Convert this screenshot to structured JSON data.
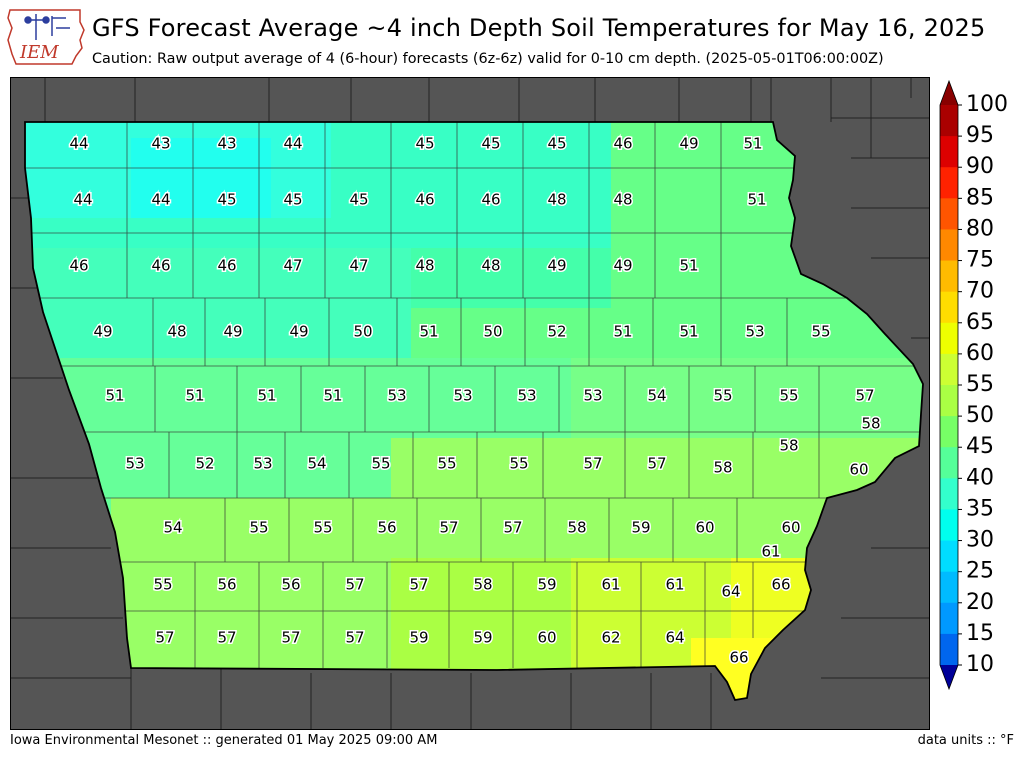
{
  "header": {
    "logo_text": "IEM",
    "title": "GFS Forecast Average ~4 inch Depth Soil Temperatures for May 16, 2025",
    "subtitle": "Caution: Raw output average of 4 (6-hour) forecasts (6z-6z) valid for 0-10 cm depth. (2025-05-01T06:00:00Z)"
  },
  "footer": {
    "left": "Iowa Environmental Mesonet :: generated 01 May 2025 09:00 AM",
    "right": "data units :: °F"
  },
  "colorbar": {
    "ticks": [
      "100",
      "95",
      "90",
      "85",
      "80",
      "75",
      "70",
      "65",
      "60",
      "55",
      "50",
      "45",
      "40",
      "35",
      "30",
      "25",
      "20",
      "15",
      "10"
    ],
    "colors": [
      "#001a8c",
      "#0033cc",
      "#0055ee",
      "#0077ff",
      "#0099ff",
      "#00bbff",
      "#00ddff",
      "#00ffee",
      "#33ffcc",
      "#55ff99",
      "#77ff66",
      "#aaff44",
      "#ccff33",
      "#eeff00",
      "#ffdd00",
      "#ffbb00",
      "#ff8800",
      "#ff5500",
      "#ff2200",
      "#dd0000",
      "#aa0000"
    ],
    "bottom_arrow_color": "#000099",
    "top_arrow_color": "#880000"
  },
  "map": {
    "background_color": "#555555",
    "county_values": [
      [
        "44",
        "43",
        "43",
        "44",
        "45",
        "45",
        "45",
        "46",
        "49",
        "51"
      ],
      [
        "44",
        "44",
        "45",
        "45",
        "45",
        "46",
        "46",
        "48",
        "48",
        "51"
      ],
      [
        "46",
        "46",
        "46",
        "47",
        "47",
        "48",
        "48",
        "49",
        "49",
        "51"
      ],
      [
        "49",
        "48",
        "49",
        "49",
        "50",
        "51",
        "50",
        "52",
        "51",
        "51",
        "53",
        "55"
      ],
      [
        "51",
        "51",
        "51",
        "51",
        "53",
        "53",
        "53",
        "53",
        "54",
        "55",
        "55",
        "57"
      ],
      [
        "53",
        "52",
        "53",
        "54",
        "55",
        "55",
        "55",
        "57",
        "57",
        "58",
        "58",
        "58",
        "60"
      ],
      [
        "54",
        "55",
        "55",
        "56",
        "57",
        "57",
        "58",
        "59",
        "60",
        "60",
        "61"
      ],
      [
        "55",
        "56",
        "56",
        "57",
        "57",
        "58",
        "59",
        "61",
        "61",
        "64",
        "66"
      ],
      [
        "57",
        "57",
        "57",
        "57",
        "59",
        "59",
        "60",
        "62",
        "64",
        "66"
      ]
    ]
  }
}
